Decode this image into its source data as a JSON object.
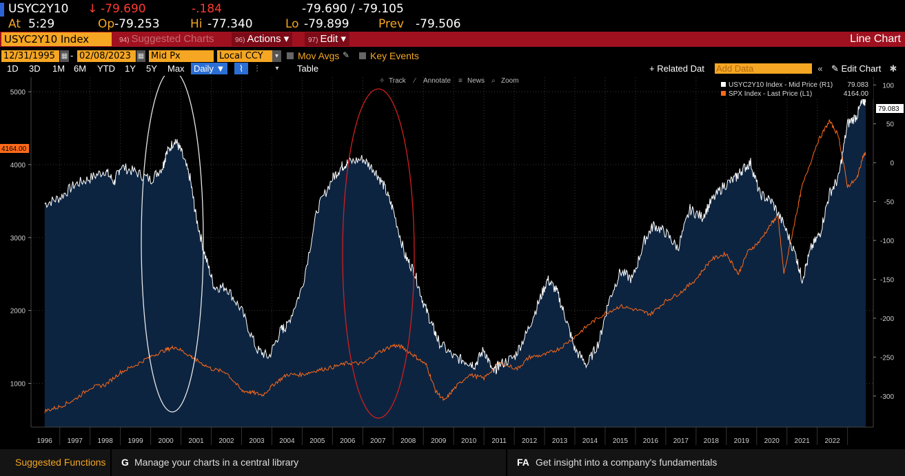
{
  "quote": {
    "ticker": "USYC2Y10",
    "arrow": "↓",
    "last": "-79.690",
    "change": "-.184",
    "bid_ask": "-79.690 / -79.105",
    "at_label": "At",
    "at_value": "5:29",
    "op_label": "Op",
    "op_value": "-79.253",
    "hi_label": "Hi",
    "hi_value": "-77.340",
    "lo_label": "Lo",
    "lo_value": "-79.899",
    "prev_label": "Prev",
    "prev_value": "-79.506"
  },
  "function_bar": {
    "security": "USYC2Y10 Index",
    "suggested_num": "94)",
    "suggested_label": "Suggested Charts",
    "actions_num": "96)",
    "actions_label": "Actions ▾",
    "edit_num": "97)",
    "edit_label": "Edit ▾",
    "title": "Line Chart"
  },
  "settings": {
    "start_date": "12/31/1995",
    "end_date": "02/08/2023",
    "price_field": "Mid Px",
    "currency": "Local CCY",
    "mov_avgs": "Mov Avgs",
    "key_events": "Key Events",
    "date_sep": "-"
  },
  "ranges": [
    "1D",
    "3D",
    "1M",
    "6M",
    "YTD",
    "1Y",
    "5Y",
    "Max"
  ],
  "frequency": "Daily ▼",
  "table_label": "Table",
  "related_label": "+ Related Dat",
  "add_data_placeholder": "Add Data",
  "edit_chart_label": "Edit Chart",
  "tools": {
    "track": "Track",
    "annotate": "Annotate",
    "news": "News",
    "zoom": "Zoom"
  },
  "colors": {
    "accent": "#f5a623",
    "function_bar": "#a0111f",
    "spx_line": "#ff6a1a",
    "spread_line": "#ffffff",
    "area_fill": "#0d2440"
  },
  "chart_data": {
    "type": "line",
    "x_label_years": [
      "1996",
      "1997",
      "1998",
      "1999",
      "2000",
      "2001",
      "2002",
      "2003",
      "2004",
      "2005",
      "2006",
      "2007",
      "2008",
      "2009",
      "2010",
      "2011",
      "2012",
      "2013",
      "2014",
      "2015",
      "2016",
      "2017",
      "2018",
      "2019",
      "2020",
      "2021",
      "2022"
    ],
    "left_axis_ticks": [
      "5000",
      "4000",
      "3000",
      "2000",
      "1000"
    ],
    "right_axis_ticks": [
      "100",
      "50",
      "0",
      "-50",
      "-100",
      "-150",
      "-200",
      "-250",
      "-300"
    ],
    "left_marker": "4164.00",
    "right_marker": "79.083",
    "ylim_left": [
      400,
      5200
    ],
    "ylim_right": [
      -340,
      110
    ],
    "series": [
      {
        "name": "USYC2Y10 Index - Mid Price (R1)",
        "last": "79.083",
        "axis": "right",
        "x": [
          1996.0,
          1996.5,
          1997.0,
          1997.5,
          1998.0,
          1998.3,
          1998.5,
          1999.0,
          1999.5,
          1999.9,
          2000.0,
          2000.3,
          2000.5,
          2000.8,
          2001.0,
          2001.3,
          2001.6,
          2002.0,
          2002.5,
          2003.0,
          2003.4,
          2003.8,
          2004.0,
          2004.5,
          2005.0,
          2005.5,
          2005.8,
          2006.0,
          2006.5,
          2006.9,
          2007.2,
          2007.5,
          2007.9,
          2008.2,
          2008.5,
          2008.8,
          2009.0,
          2009.5,
          2009.9,
          2010.2,
          2010.5,
          2010.8,
          2011.0,
          2011.5,
          2011.9,
          2012.3,
          2012.6,
          2012.9,
          2013.2,
          2013.5,
          2013.9,
          2014.3,
          2014.6,
          2015.0,
          2015.4,
          2015.8,
          2016.1,
          2016.5,
          2016.9,
          2017.3,
          2017.7,
          2018.0,
          2018.4,
          2018.8,
          2019.0,
          2019.3,
          2019.6,
          2020.0,
          2020.4,
          2020.8,
          2021.0,
          2021.3,
          2021.6,
          2021.9,
          2022.2,
          2022.5,
          2022.8,
          2023.0,
          2023.1
        ],
        "y": [
          -53,
          -45,
          -28,
          -20,
          -10,
          -25,
          -5,
          -12,
          -22,
          -5,
          10,
          30,
          15,
          -20,
          -70,
          -120,
          -160,
          -160,
          -190,
          -240,
          -250,
          -215,
          -210,
          -160,
          -60,
          -20,
          -5,
          0,
          5,
          -10,
          -30,
          -60,
          -120,
          -140,
          -180,
          -210,
          -230,
          -250,
          -255,
          -260,
          -240,
          -270,
          -260,
          -250,
          -220,
          -180,
          -150,
          -165,
          -200,
          -240,
          -260,
          -230,
          -180,
          -140,
          -150,
          -100,
          -80,
          -90,
          -110,
          -60,
          -70,
          -50,
          -30,
          -20,
          -10,
          0,
          -40,
          -50,
          -80,
          -120,
          -150,
          -110,
          -90,
          -40,
          -20,
          50,
          60,
          80,
          79
        ]
      },
      {
        "name": "SPX Index - Last Price (L1)",
        "last": "4164.00",
        "axis": "left",
        "x": [
          1996.0,
          1996.5,
          1997.0,
          1997.5,
          1998.0,
          1998.5,
          1999.0,
          1999.5,
          2000.0,
          2000.3,
          2000.8,
          2001.0,
          2001.5,
          2002.0,
          2002.5,
          2002.8,
          2003.2,
          2003.6,
          2004.0,
          2004.5,
          2005.0,
          2005.5,
          2006.0,
          2006.5,
          2007.0,
          2007.5,
          2007.8,
          2008.2,
          2008.6,
          2008.9,
          2009.2,
          2009.5,
          2010.0,
          2010.5,
          2011.0,
          2011.6,
          2012.0,
          2012.5,
          2013.0,
          2013.5,
          2014.0,
          2014.5,
          2015.0,
          2015.6,
          2016.0,
          2016.5,
          2017.0,
          2017.5,
          2018.0,
          2018.5,
          2018.9,
          2019.2,
          2019.6,
          2020.0,
          2020.2,
          2020.4,
          2020.8,
          2021.0,
          2021.5,
          2021.9,
          2022.2,
          2022.5,
          2022.8,
          2023.0,
          2023.1
        ],
        "y": [
          620,
          680,
          780,
          940,
          980,
          1150,
          1250,
          1370,
          1460,
          1500,
          1380,
          1320,
          1200,
          1150,
          900,
          880,
          840,
          1000,
          1120,
          1120,
          1180,
          1220,
          1280,
          1270,
          1420,
          1520,
          1500,
          1380,
          1250,
          900,
          760,
          920,
          1120,
          1070,
          1280,
          1200,
          1360,
          1390,
          1480,
          1640,
          1820,
          1960,
          2060,
          2000,
          1950,
          2130,
          2250,
          2430,
          2700,
          2780,
          2500,
          2800,
          2950,
          3200,
          3300,
          2500,
          3300,
          3700,
          4300,
          4600,
          4400,
          3700,
          3800,
          4100,
          4164
        ]
      }
    ],
    "annotations": [
      {
        "type": "ellipse",
        "color": "#ffffff",
        "note": "2000 peak"
      },
      {
        "type": "ellipse",
        "color": "#d11f1f",
        "note": "2007 peak"
      }
    ]
  },
  "footer": {
    "suggested": "Suggested Functions",
    "key1": "G",
    "text1": "Manage your charts in a central library",
    "key2": "FA",
    "text2": "Get insight into a company's fundamentals"
  }
}
